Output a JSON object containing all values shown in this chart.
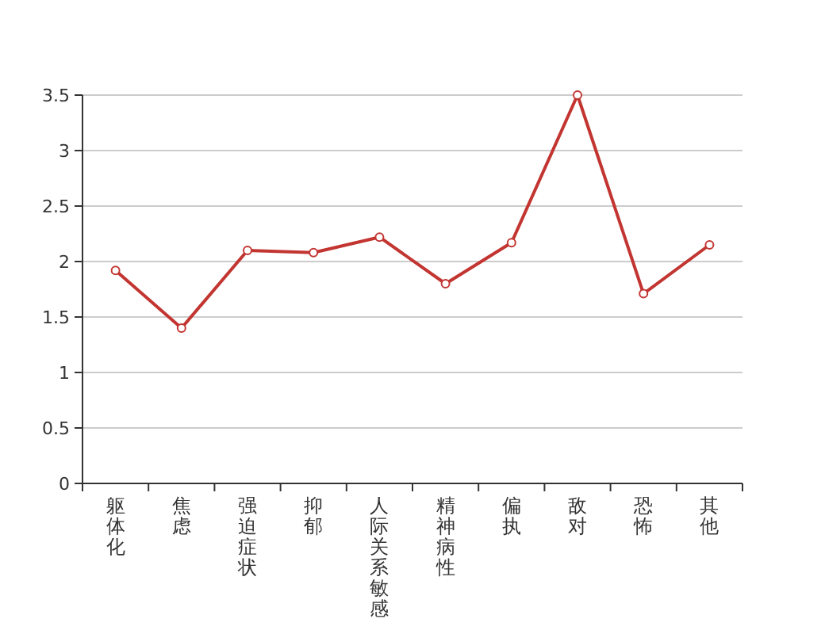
{
  "chart_data": {
    "type": "line",
    "categories": [
      "躯体化",
      "焦虑",
      "强迫症状",
      "抑郁",
      "人际关系敏感",
      "精神病性",
      "偏执",
      "敌对",
      "恐怖",
      "其他"
    ],
    "series": [
      {
        "color": "#c23531",
        "values": [
          1.92,
          1.4,
          2.1,
          2.08,
          2.22,
          1.8,
          2.17,
          3.5,
          1.71,
          2.15
        ]
      }
    ],
    "ylim": [
      0,
      3.5
    ],
    "yticks": [
      0,
      0.5,
      1,
      1.5,
      2,
      2.5,
      3,
      3.5
    ],
    "grid": "y",
    "marker": "circle"
  }
}
